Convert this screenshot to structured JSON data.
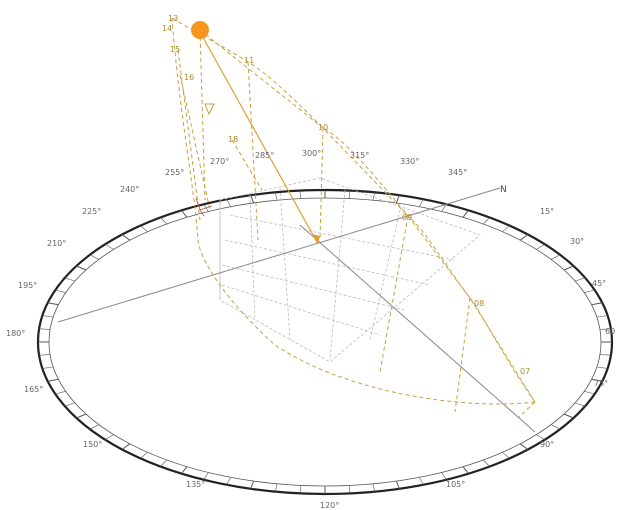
{
  "diagram": {
    "type": "sun-path-diagram",
    "north_label": "N",
    "compass_labels": [
      {
        "id": "0",
        "text": "N"
      },
      {
        "id": "15",
        "text": "15°"
      },
      {
        "id": "30",
        "text": "30°"
      },
      {
        "id": "45",
        "text": "45°"
      },
      {
        "id": "60",
        "text": "60"
      },
      {
        "id": "75",
        "text": "75°"
      },
      {
        "id": "90",
        "text": "90°"
      },
      {
        "id": "105",
        "text": "105°"
      },
      {
        "id": "120",
        "text": "120°"
      },
      {
        "id": "135",
        "text": "135°"
      },
      {
        "id": "150",
        "text": "150°"
      },
      {
        "id": "165",
        "text": "165°"
      },
      {
        "id": "180",
        "text": "180°"
      },
      {
        "id": "195",
        "text": "195°"
      },
      {
        "id": "210",
        "text": "210°"
      },
      {
        "id": "225",
        "text": "225°"
      },
      {
        "id": "240",
        "text": "240°"
      },
      {
        "id": "255",
        "text": "255°"
      },
      {
        "id": "270",
        "text": "270°"
      },
      {
        "id": "285",
        "text": "285°"
      },
      {
        "id": "300",
        "text": "300°"
      },
      {
        "id": "315",
        "text": "315°"
      },
      {
        "id": "330",
        "text": "330°"
      },
      {
        "id": "345",
        "text": "345°"
      }
    ],
    "hour_labels": [
      {
        "id": "07",
        "text": "07"
      },
      {
        "id": "08",
        "text": "08"
      },
      {
        "id": "09",
        "text": "09"
      },
      {
        "id": "10",
        "text": "10"
      },
      {
        "id": "11",
        "text": "11"
      },
      {
        "id": "13",
        "text": "13"
      },
      {
        "id": "14",
        "text": "14"
      },
      {
        "id": "15",
        "text": "15"
      },
      {
        "id": "16",
        "text": "16"
      },
      {
        "id": "18",
        "text": "18"
      }
    ],
    "colors": {
      "sun": "#f7961e",
      "sun_path": "#c8a040",
      "compass_ring": "#222222",
      "axis_line": "#888888",
      "grid": "#bbbbbb"
    }
  }
}
